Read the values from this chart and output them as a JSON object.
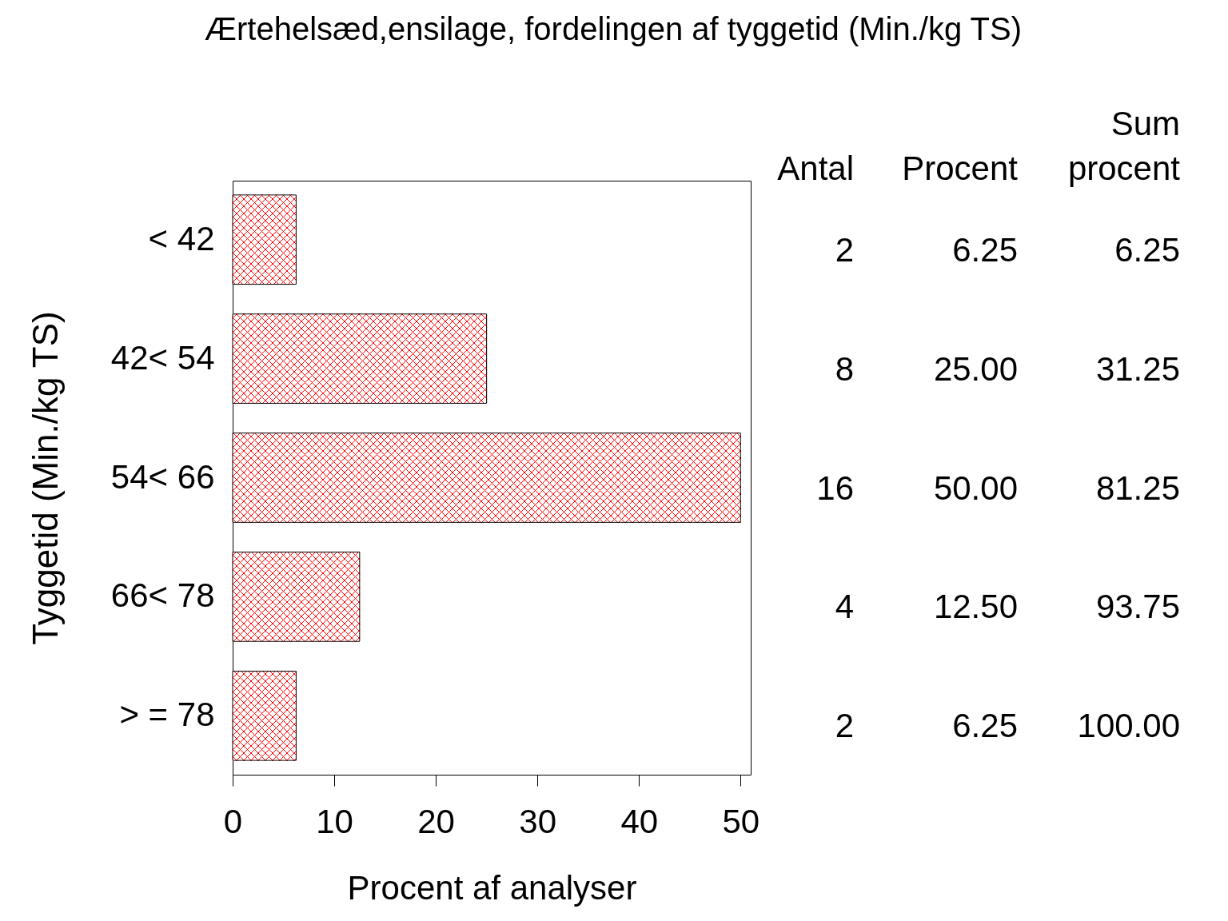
{
  "chart_data": {
    "type": "bar",
    "orientation": "horizontal",
    "title": "Ærtehelsæd,ensilage, fordelingen af tyggetid (Min./kg TS)",
    "xlabel": "Procent af analyser",
    "ylabel": "Tyggetid (Min./kg TS)",
    "categories": [
      "< 42",
      "42< 54",
      "54< 66",
      "66< 78",
      "> = 78"
    ],
    "values": [
      6.25,
      25.0,
      50.0,
      12.5,
      6.25
    ],
    "color": "#ff0000",
    "value_labels": [
      "6.25",
      "25.00",
      "50.00",
      "12.50",
      "6.25"
    ],
    "xlim": [
      0,
      51
    ],
    "xticks": [
      0,
      10,
      20,
      30,
      40,
      50
    ],
    "grid": false,
    "annotations": [
      "Antal",
      "Procent",
      "Sum procent",
      "2",
      "6.25",
      "8",
      "31.25",
      "16",
      "81.25",
      "4",
      "93.75",
      "2",
      "100.00"
    ]
  }
}
